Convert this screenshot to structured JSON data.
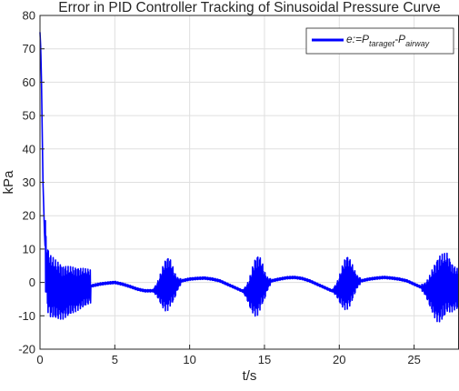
{
  "chart_data": {
    "type": "line",
    "title": "Error in PID Controller Tracking of Sinusoidal Pressure Curve",
    "xlabel": "t/s",
    "ylabel": "kPa",
    "xlim": [
      0,
      28
    ],
    "ylim": [
      -20,
      80
    ],
    "xticks": [
      "0",
      "5",
      "10",
      "15",
      "20",
      "25"
    ],
    "yticks": [
      "-20",
      "-10",
      "0",
      "10",
      "20",
      "30",
      "40",
      "50",
      "60",
      "70",
      "80"
    ],
    "grid": true,
    "legend_position": "top-right",
    "legend": {
      "main": "e:=P",
      "sub1": "taraget",
      "mid": "-P",
      "sub2": "airway"
    },
    "series": [
      {
        "color": "#0000ff",
        "x": [
          0,
          0.05,
          0.1,
          0.15,
          0.2,
          0.3,
          0.4,
          0.5,
          0.7,
          1.0,
          1.5,
          2.0,
          2.5,
          3.0,
          3.5,
          4.0,
          4.5,
          5.0,
          5.5,
          6.0,
          6.5,
          7.0,
          7.5,
          8.0,
          8.5,
          8.7,
          9.0,
          9.5,
          10.0,
          10.5,
          11.0,
          11.5,
          12.0,
          12.5,
          13.0,
          13.5,
          14.0,
          14.5,
          14.8,
          15.0,
          15.5,
          16.0,
          16.5,
          17.0,
          17.5,
          18.0,
          18.5,
          19.0,
          19.5,
          20.0,
          20.5,
          20.8,
          21.0,
          21.5,
          22.0,
          22.5,
          23.0,
          23.5,
          24.0,
          24.5,
          25.0,
          25.5,
          26.0,
          26.5,
          27.0,
          27.2,
          27.5,
          28.0
        ],
        "y": [
          75,
          70,
          60,
          45,
          30,
          15,
          5,
          1,
          -1,
          -2,
          -3,
          -2.5,
          -2,
          -1.5,
          -1,
          -0.5,
          -0.2,
          0,
          -0.5,
          -1.2,
          -2,
          -2.5,
          -2.5,
          -2,
          -0.5,
          0,
          -1,
          0.5,
          1,
          1.2,
          1.3,
          1,
          0.5,
          -0.5,
          -1.5,
          -2.5,
          -3,
          -1,
          0,
          -1,
          0.5,
          1,
          1.4,
          1.5,
          1.2,
          0.5,
          -0.5,
          -1.5,
          -2.5,
          -2,
          0,
          0,
          0,
          0.5,
          1,
          1.3,
          1.5,
          1.3,
          1,
          0.5,
          -0.5,
          -1.5,
          -2.5,
          -2.5,
          -1,
          0,
          -1.5,
          -2
        ]
      }
    ],
    "oscillation_bands": [
      {
        "x0": 0.3,
        "x1": 3.4,
        "amp": [
          10,
          5
        ]
      },
      {
        "x0": 7.6,
        "x1": 9.4,
        "amp": [
          1,
          8,
          1
        ]
      },
      {
        "x0": 13.6,
        "x1": 15.4,
        "amp": [
          1,
          9,
          1
        ]
      },
      {
        "x0": 19.6,
        "x1": 21.4,
        "amp": [
          1,
          8,
          1
        ]
      },
      {
        "x0": 25.5,
        "x1": 28.0,
        "amp": [
          1,
          10,
          6
        ]
      }
    ]
  }
}
